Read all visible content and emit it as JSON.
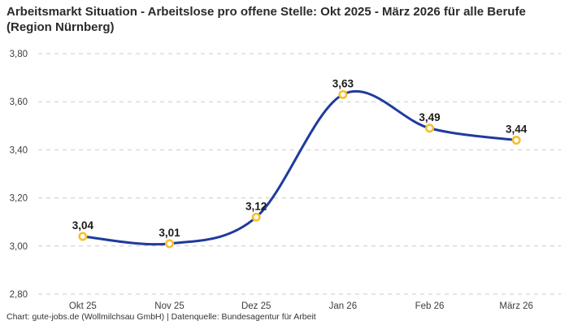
{
  "chart_data": {
    "type": "line",
    "title": "Arbeitsmarkt Situation - Arbeitslose pro offene Stelle: Okt 2025 - März 2026 für alle Berufe (Region Nürnberg)",
    "categories": [
      "Okt 25",
      "Nov 25",
      "Dez 25",
      "Jan 26",
      "Feb 26",
      "März 26"
    ],
    "values": [
      3.04,
      3.01,
      3.12,
      3.63,
      3.49,
      3.44
    ],
    "point_labels": [
      "3,04",
      "3,01",
      "3,12",
      "3,63",
      "3,49",
      "3,44"
    ],
    "xlabel": "",
    "ylabel": "",
    "ylim": [
      2.8,
      3.8
    ],
    "yticks": [
      3.8,
      3.6,
      3.4,
      3.2,
      3.0,
      2.8
    ],
    "ytick_labels": [
      "3,80",
      "3,60",
      "3,40",
      "3,20",
      "3,00",
      "2,80"
    ],
    "grid": "horizontal-dashed",
    "legend": "none",
    "line_shape": "spline",
    "colors": {
      "line": "#1f3b9d",
      "marker_stroke": "#f7bf2d",
      "marker_fill": "#ffffff",
      "grid": "#cbcbcb",
      "title_text": "#2b2b2b",
      "axis_text": "#3d3d3d",
      "point_label_text": "#1b1b1b",
      "background": "#ffffff"
    }
  },
  "footer": {
    "credit": "Chart: gute-jobs.de (Wollmilchsau GmbH) | Datenquelle: Bundesagentur für Arbeit"
  }
}
